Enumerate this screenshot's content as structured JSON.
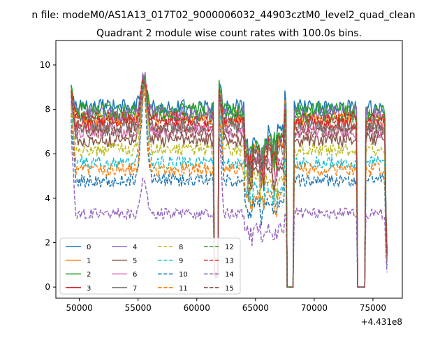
{
  "suptitle": "n file: modeM0/AS1A13_017T02_9000006032_44903cztM0_level2_quad_clean",
  "chart_data": {
    "type": "line",
    "title": "Quadrant 2 module wise count rates with 100.0s bins.",
    "xlabel": "",
    "ylabel": "",
    "x_offset_label": "+4.431e8",
    "xlim": [
      48000,
      77500
    ],
    "ylim": [
      -0.5,
      11.1
    ],
    "x_ticks": [
      50000,
      55000,
      60000,
      65000,
      70000,
      75000
    ],
    "x_tick_labels": [
      "50000",
      "55000",
      "60000",
      "65000",
      "70000",
      "75000"
    ],
    "y_ticks": [
      0,
      2,
      4,
      6,
      8,
      10
    ],
    "y_tick_labels": [
      "0",
      "2",
      "4",
      "6",
      "8",
      "10"
    ],
    "grid": false,
    "legend": {
      "placement": "lower-left",
      "columns": 4
    },
    "x_range": [
      49300,
      76200
    ],
    "bin": 100,
    "gaps": [
      {
        "start": 61500,
        "end": 61800,
        "type": "dip"
      },
      {
        "start": 67700,
        "end": 68200,
        "type": "zero"
      },
      {
        "start": 73700,
        "end": 74300,
        "type": "zero"
      }
    ],
    "series": [
      {
        "name": "0",
        "color": "#1f77b4",
        "dash": "solid",
        "base": 8.1,
        "noise": 0.35
      },
      {
        "name": "1",
        "color": "#ff7f0e",
        "dash": "solid",
        "base": 7.6,
        "noise": 0.35
      },
      {
        "name": "2",
        "color": "#2ca02c",
        "dash": "solid",
        "base": 8.0,
        "noise": 0.3
      },
      {
        "name": "3",
        "color": "#d62728",
        "dash": "solid",
        "base": 7.3,
        "noise": 0.3
      },
      {
        "name": "4",
        "color": "#9467bd",
        "dash": "solid",
        "base": 7.8,
        "noise": 0.35
      },
      {
        "name": "5",
        "color": "#8c564b",
        "dash": "solid",
        "base": 6.6,
        "noise": 0.3
      },
      {
        "name": "6",
        "color": "#e377c2",
        "dash": "solid",
        "base": 7.0,
        "noise": 0.3
      },
      {
        "name": "7",
        "color": "#7f7f7f",
        "dash": "solid",
        "base": 7.2,
        "noise": 0.3
      },
      {
        "name": "8",
        "color": "#bcbd22",
        "dash": "dashed",
        "base": 6.2,
        "noise": 0.3
      },
      {
        "name": "9",
        "color": "#17becf",
        "dash": "dashed",
        "base": 5.6,
        "noise": 0.3
      },
      {
        "name": "10",
        "color": "#1f77b4",
        "dash": "dashed",
        "base": 4.8,
        "noise": 0.3
      },
      {
        "name": "11",
        "color": "#ff7f0e",
        "dash": "dashed",
        "base": 5.3,
        "noise": 0.3
      },
      {
        "name": "12",
        "color": "#2ca02c",
        "dash": "dashed",
        "base": 7.7,
        "noise": 0.3
      },
      {
        "name": "13",
        "color": "#d62728",
        "dash": "dashed",
        "base": 7.6,
        "noise": 0.3
      },
      {
        "name": "14",
        "color": "#9467bd",
        "dash": "dashed",
        "base": 3.3,
        "noise": 0.25
      },
      {
        "name": "15",
        "color": "#8c564b",
        "dash": "dashed",
        "base": 7.0,
        "noise": 0.3
      }
    ]
  }
}
